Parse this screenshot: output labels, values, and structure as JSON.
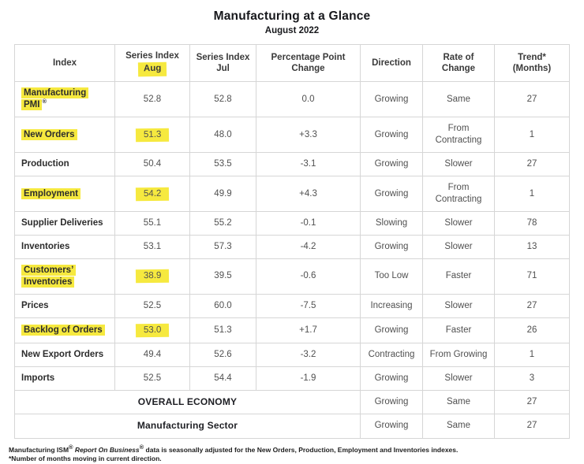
{
  "title": "Manufacturing at a Glance",
  "subtitle": "August 2022",
  "colors": {
    "highlight_yellow": "#f6e93f",
    "table_border": "#d6d6d6",
    "label_text": "#2c2c2c",
    "value_text": "#505050"
  },
  "table": {
    "headers": {
      "index": "Index",
      "series_aug_line1": "Series Index",
      "series_aug_line2": "Aug",
      "series_jul_line1": "Series Index",
      "series_jul_line2": "Jul",
      "change_line1": "Percentage Point",
      "change_line2": "Change",
      "direction": "Direction",
      "rate": "Rate of Change",
      "trend_line1": "Trend*",
      "trend_line2": "(Months)"
    },
    "rows": [
      {
        "label": "Manufacturing PMI",
        "label_sup": "®",
        "label_highlight": true,
        "aug": "52.8",
        "aug_highlight": false,
        "jul": "52.8",
        "change": "0.0",
        "direction": "Growing",
        "rate": "Same",
        "trend": "27"
      },
      {
        "label": "New Orders",
        "label_highlight": true,
        "aug": "51.3",
        "aug_highlight": true,
        "jul": "48.0",
        "change": "+3.3",
        "direction": "Growing",
        "rate": "From Contracting",
        "trend": "1"
      },
      {
        "label": "Production",
        "label_highlight": false,
        "aug": "50.4",
        "aug_highlight": false,
        "jul": "53.5",
        "change": "-3.1",
        "direction": "Growing",
        "rate": "Slower",
        "trend": "27"
      },
      {
        "label": "Employment",
        "label_highlight": true,
        "aug": "54.2",
        "aug_highlight": true,
        "jul": "49.9",
        "change": "+4.3",
        "direction": "Growing",
        "rate": "From Contracting",
        "trend": "1"
      },
      {
        "label": "Supplier Deliveries",
        "label_highlight": false,
        "aug": "55.1",
        "aug_highlight": false,
        "jul": "55.2",
        "change": "-0.1",
        "direction": "Slowing",
        "rate": "Slower",
        "trend": "78"
      },
      {
        "label": "Inventories",
        "label_highlight": false,
        "aug": "53.1",
        "aug_highlight": false,
        "jul": "57.3",
        "change": "-4.2",
        "direction": "Growing",
        "rate": "Slower",
        "trend": "13"
      },
      {
        "label": "Customers’ Inventories",
        "label_highlight": true,
        "aug": "38.9",
        "aug_highlight": true,
        "jul": "39.5",
        "change": "-0.6",
        "direction": "Too Low",
        "rate": "Faster",
        "trend": "71"
      },
      {
        "label": "Prices",
        "label_highlight": false,
        "aug": "52.5",
        "aug_highlight": false,
        "jul": "60.0",
        "change": "-7.5",
        "direction": "Increasing",
        "rate": "Slower",
        "trend": "27"
      },
      {
        "label": "Backlog of Orders",
        "label_highlight": true,
        "aug": "53.0",
        "aug_highlight": true,
        "jul": "51.3",
        "change": "+1.7",
        "direction": "Growing",
        "rate": "Faster",
        "trend": "26"
      },
      {
        "label": "New Export Orders",
        "label_highlight": false,
        "aug": "49.4",
        "aug_highlight": false,
        "jul": "52.6",
        "change": "-3.2",
        "direction": "Contracting",
        "rate": "From Growing",
        "trend": "1"
      },
      {
        "label": "Imports",
        "label_highlight": false,
        "aug": "52.5",
        "aug_highlight": false,
        "jul": "54.4",
        "change": "-1.9",
        "direction": "Growing",
        "rate": "Slower",
        "trend": "3"
      }
    ],
    "summary_rows": [
      {
        "label": "OVERALL ECONOMY",
        "direction": "Growing",
        "rate": "Same",
        "trend": "27"
      },
      {
        "label": "Manufacturing Sector",
        "direction": "Growing",
        "rate": "Same",
        "trend": "27"
      }
    ]
  },
  "footnotes": {
    "line1_part1": "Manufacturing ISM",
    "line1_sup1": "®",
    "line1_italic": " Report On Business",
    "line1_sup2": "®",
    "line1_part2": " data is seasonally adjusted for the New Orders, Production, Employment and Inventories indexes.",
    "line2": "*Number of months moving in current direction."
  },
  "chart_data": {
    "type": "table",
    "title": "Manufacturing at a Glance",
    "subtitle": "August 2022",
    "columns": [
      "Index",
      "Series Index Aug",
      "Series Index Jul",
      "Percentage Point Change",
      "Direction",
      "Rate of Change",
      "Trend* (Months)"
    ],
    "rows": [
      [
        "Manufacturing PMI®",
        52.8,
        52.8,
        0.0,
        "Growing",
        "Same",
        27
      ],
      [
        "New Orders",
        51.3,
        48.0,
        3.3,
        "Growing",
        "From Contracting",
        1
      ],
      [
        "Production",
        50.4,
        53.5,
        -3.1,
        "Growing",
        "Slower",
        27
      ],
      [
        "Employment",
        54.2,
        49.9,
        4.3,
        "Growing",
        "From Contracting",
        1
      ],
      [
        "Supplier Deliveries",
        55.1,
        55.2,
        -0.1,
        "Slowing",
        "Slower",
        78
      ],
      [
        "Inventories",
        53.1,
        57.3,
        -4.2,
        "Growing",
        "Slower",
        13
      ],
      [
        "Customers’ Inventories",
        38.9,
        39.5,
        -0.6,
        "Too Low",
        "Faster",
        71
      ],
      [
        "Prices",
        52.5,
        60.0,
        -7.5,
        "Increasing",
        "Slower",
        27
      ],
      [
        "Backlog of Orders",
        53.0,
        51.3,
        1.7,
        "Growing",
        "Faster",
        26
      ],
      [
        "New Export Orders",
        49.4,
        52.6,
        -3.2,
        "Contracting",
        "From Growing",
        1
      ],
      [
        "Imports",
        52.5,
        54.4,
        -1.9,
        "Growing",
        "Slower",
        3
      ],
      [
        "OVERALL ECONOMY",
        null,
        null,
        null,
        "Growing",
        "Same",
        27
      ],
      [
        "Manufacturing Sector",
        null,
        null,
        null,
        "Growing",
        "Same",
        27
      ]
    ]
  }
}
